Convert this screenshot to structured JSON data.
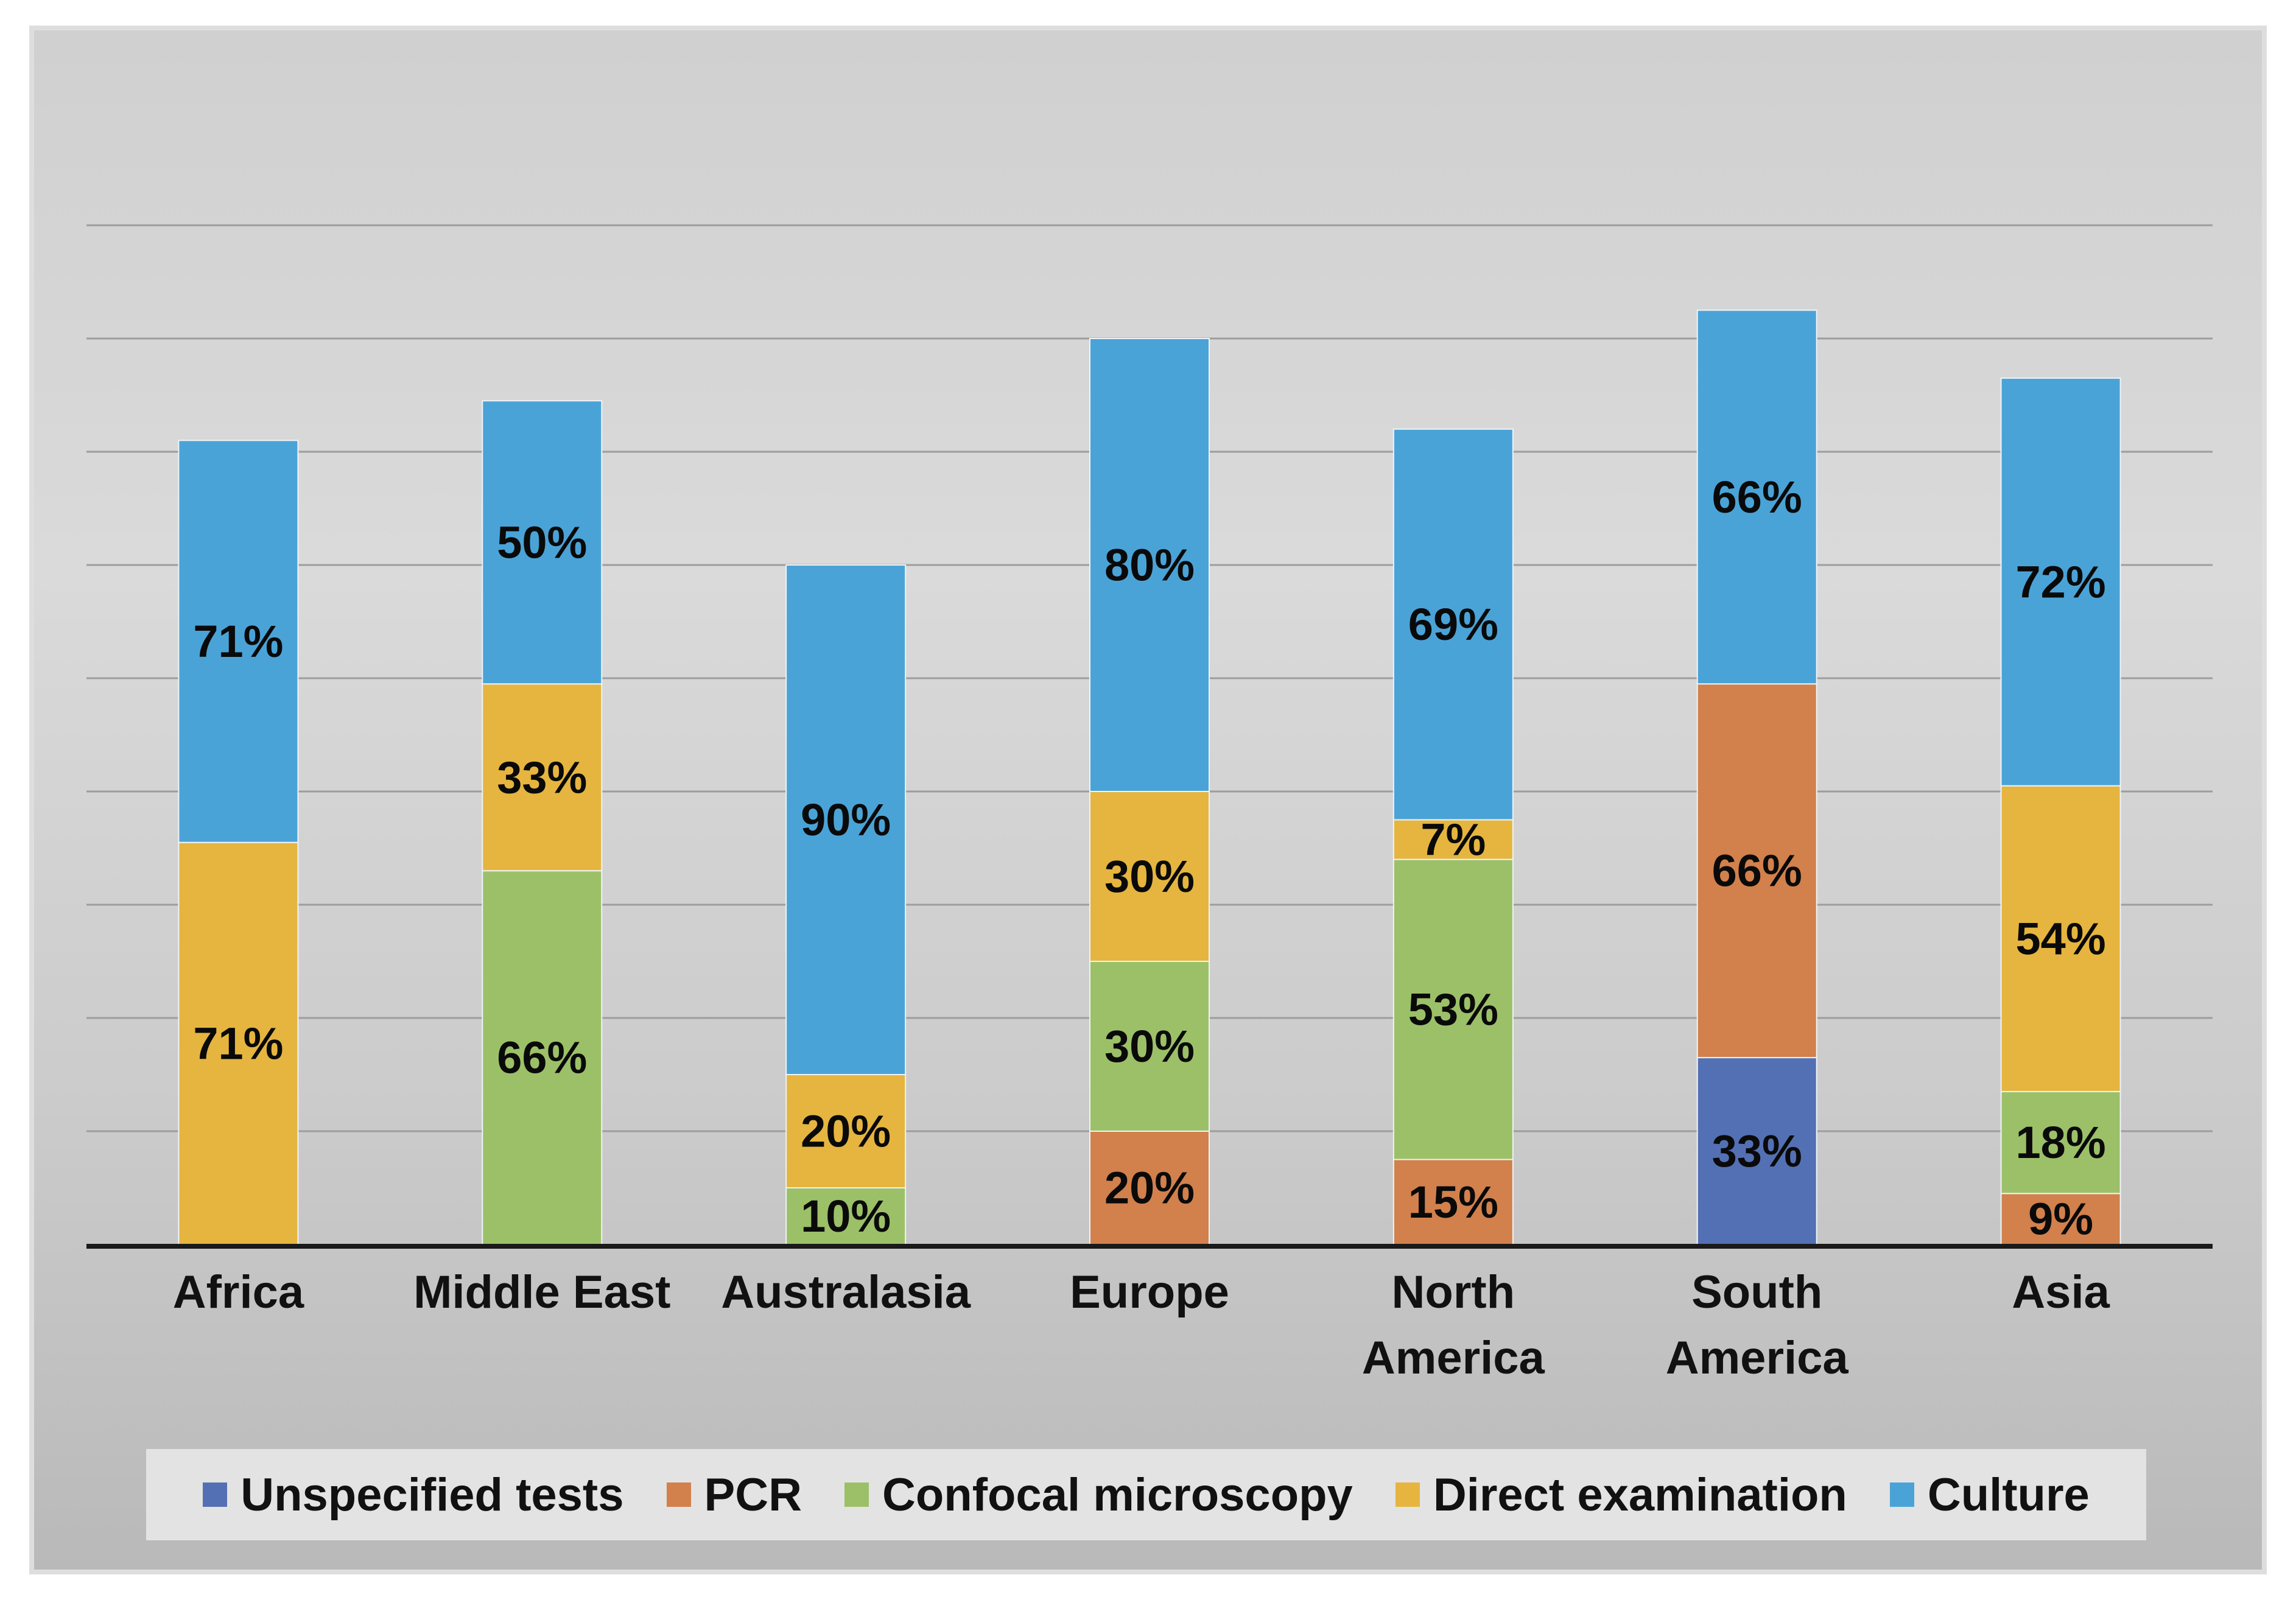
{
  "chart_data": {
    "type": "bar",
    "stacked": true,
    "categories": [
      [
        "Africa"
      ],
      [
        "Middle East"
      ],
      [
        "Australasia"
      ],
      [
        "Europe"
      ],
      [
        "North",
        "America"
      ],
      [
        "South",
        "America"
      ],
      [
        "Asia"
      ]
    ],
    "series": [
      {
        "name": "Unspecified tests",
        "color": "#5470b4",
        "values": [
          0,
          0,
          0,
          0,
          0,
          33,
          0
        ]
      },
      {
        "name": "PCR",
        "color": "#d2804c",
        "values": [
          0,
          0,
          0,
          20,
          15,
          66,
          9
        ]
      },
      {
        "name": "Confocal microscopy",
        "color": "#9cc068",
        "values": [
          0,
          66,
          10,
          30,
          53,
          0,
          18
        ]
      },
      {
        "name": "Direct examination",
        "color": "#e5b53f",
        "values": [
          71,
          33,
          20,
          30,
          7,
          0,
          54
        ]
      },
      {
        "name": "Culture",
        "color": "#4aa3d7",
        "values": [
          71,
          50,
          90,
          80,
          69,
          66,
          72
        ]
      }
    ],
    "value_suffix": "%",
    "ylim": [
      0,
      180
    ],
    "grid": true,
    "legend": "bottom",
    "title": "",
    "xlabel": "",
    "ylabel": ""
  }
}
